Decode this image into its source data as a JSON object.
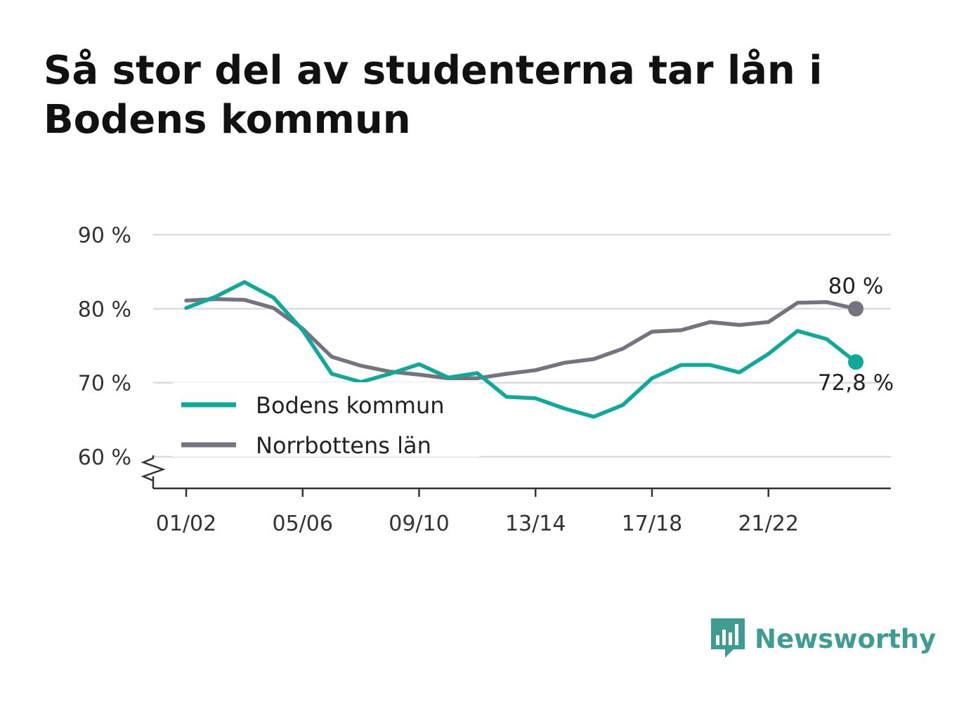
{
  "title": "Så stor del av studenterna tar lån i Bodens kommun",
  "brand": {
    "name": "Newsworthy",
    "icon": "newsworthy-logo-icon",
    "color": "#3f9c91"
  },
  "chart_data": {
    "type": "line",
    "title": "Så stor del av studenterna tar lån i Bodens kommun",
    "xlabel": "",
    "ylabel": "",
    "x": [
      "01/02",
      "02/03",
      "03/04",
      "04/05",
      "05/06",
      "06/07",
      "07/08",
      "08/09",
      "09/10",
      "10/11",
      "11/12",
      "12/13",
      "13/14",
      "14/15",
      "15/16",
      "16/17",
      "17/18",
      "18/19",
      "19/20",
      "20/21",
      "21/22",
      "22/23",
      "23/24",
      "24/25"
    ],
    "x_tick_labels": [
      "01/02",
      "05/06",
      "09/10",
      "13/14",
      "17/18",
      "21/22"
    ],
    "y_ticks": [
      60,
      70,
      80,
      90
    ],
    "y_tick_labels": [
      "60 %",
      "70 %",
      "80 %",
      "90 %"
    ],
    "ylim": [
      55.5,
      90
    ],
    "y_axis_break": true,
    "grid": true,
    "legend": "inside-bottom-left",
    "series": [
      {
        "name": "Bodens kommun",
        "color": "#0fa99a",
        "values": [
          80.1,
          81.6,
          83.6,
          81.5,
          77.1,
          71.2,
          70.1,
          71.2,
          72.5,
          70.7,
          71.3,
          68.1,
          67.9,
          66.5,
          65.4,
          67.0,
          70.6,
          72.4,
          72.4,
          71.4,
          73.9,
          77.0,
          75.9,
          72.8
        ],
        "end_label": "72,8 %"
      },
      {
        "name": "Norrbottens län",
        "color": "#75737d",
        "values": [
          81.1,
          81.3,
          81.2,
          80.1,
          77.3,
          73.5,
          72.3,
          71.5,
          71.1,
          70.6,
          70.6,
          71.2,
          71.7,
          72.7,
          73.2,
          74.6,
          76.9,
          77.1,
          78.2,
          77.8,
          78.2,
          80.8,
          80.9,
          80.0
        ],
        "end_label": "80 %"
      }
    ]
  }
}
